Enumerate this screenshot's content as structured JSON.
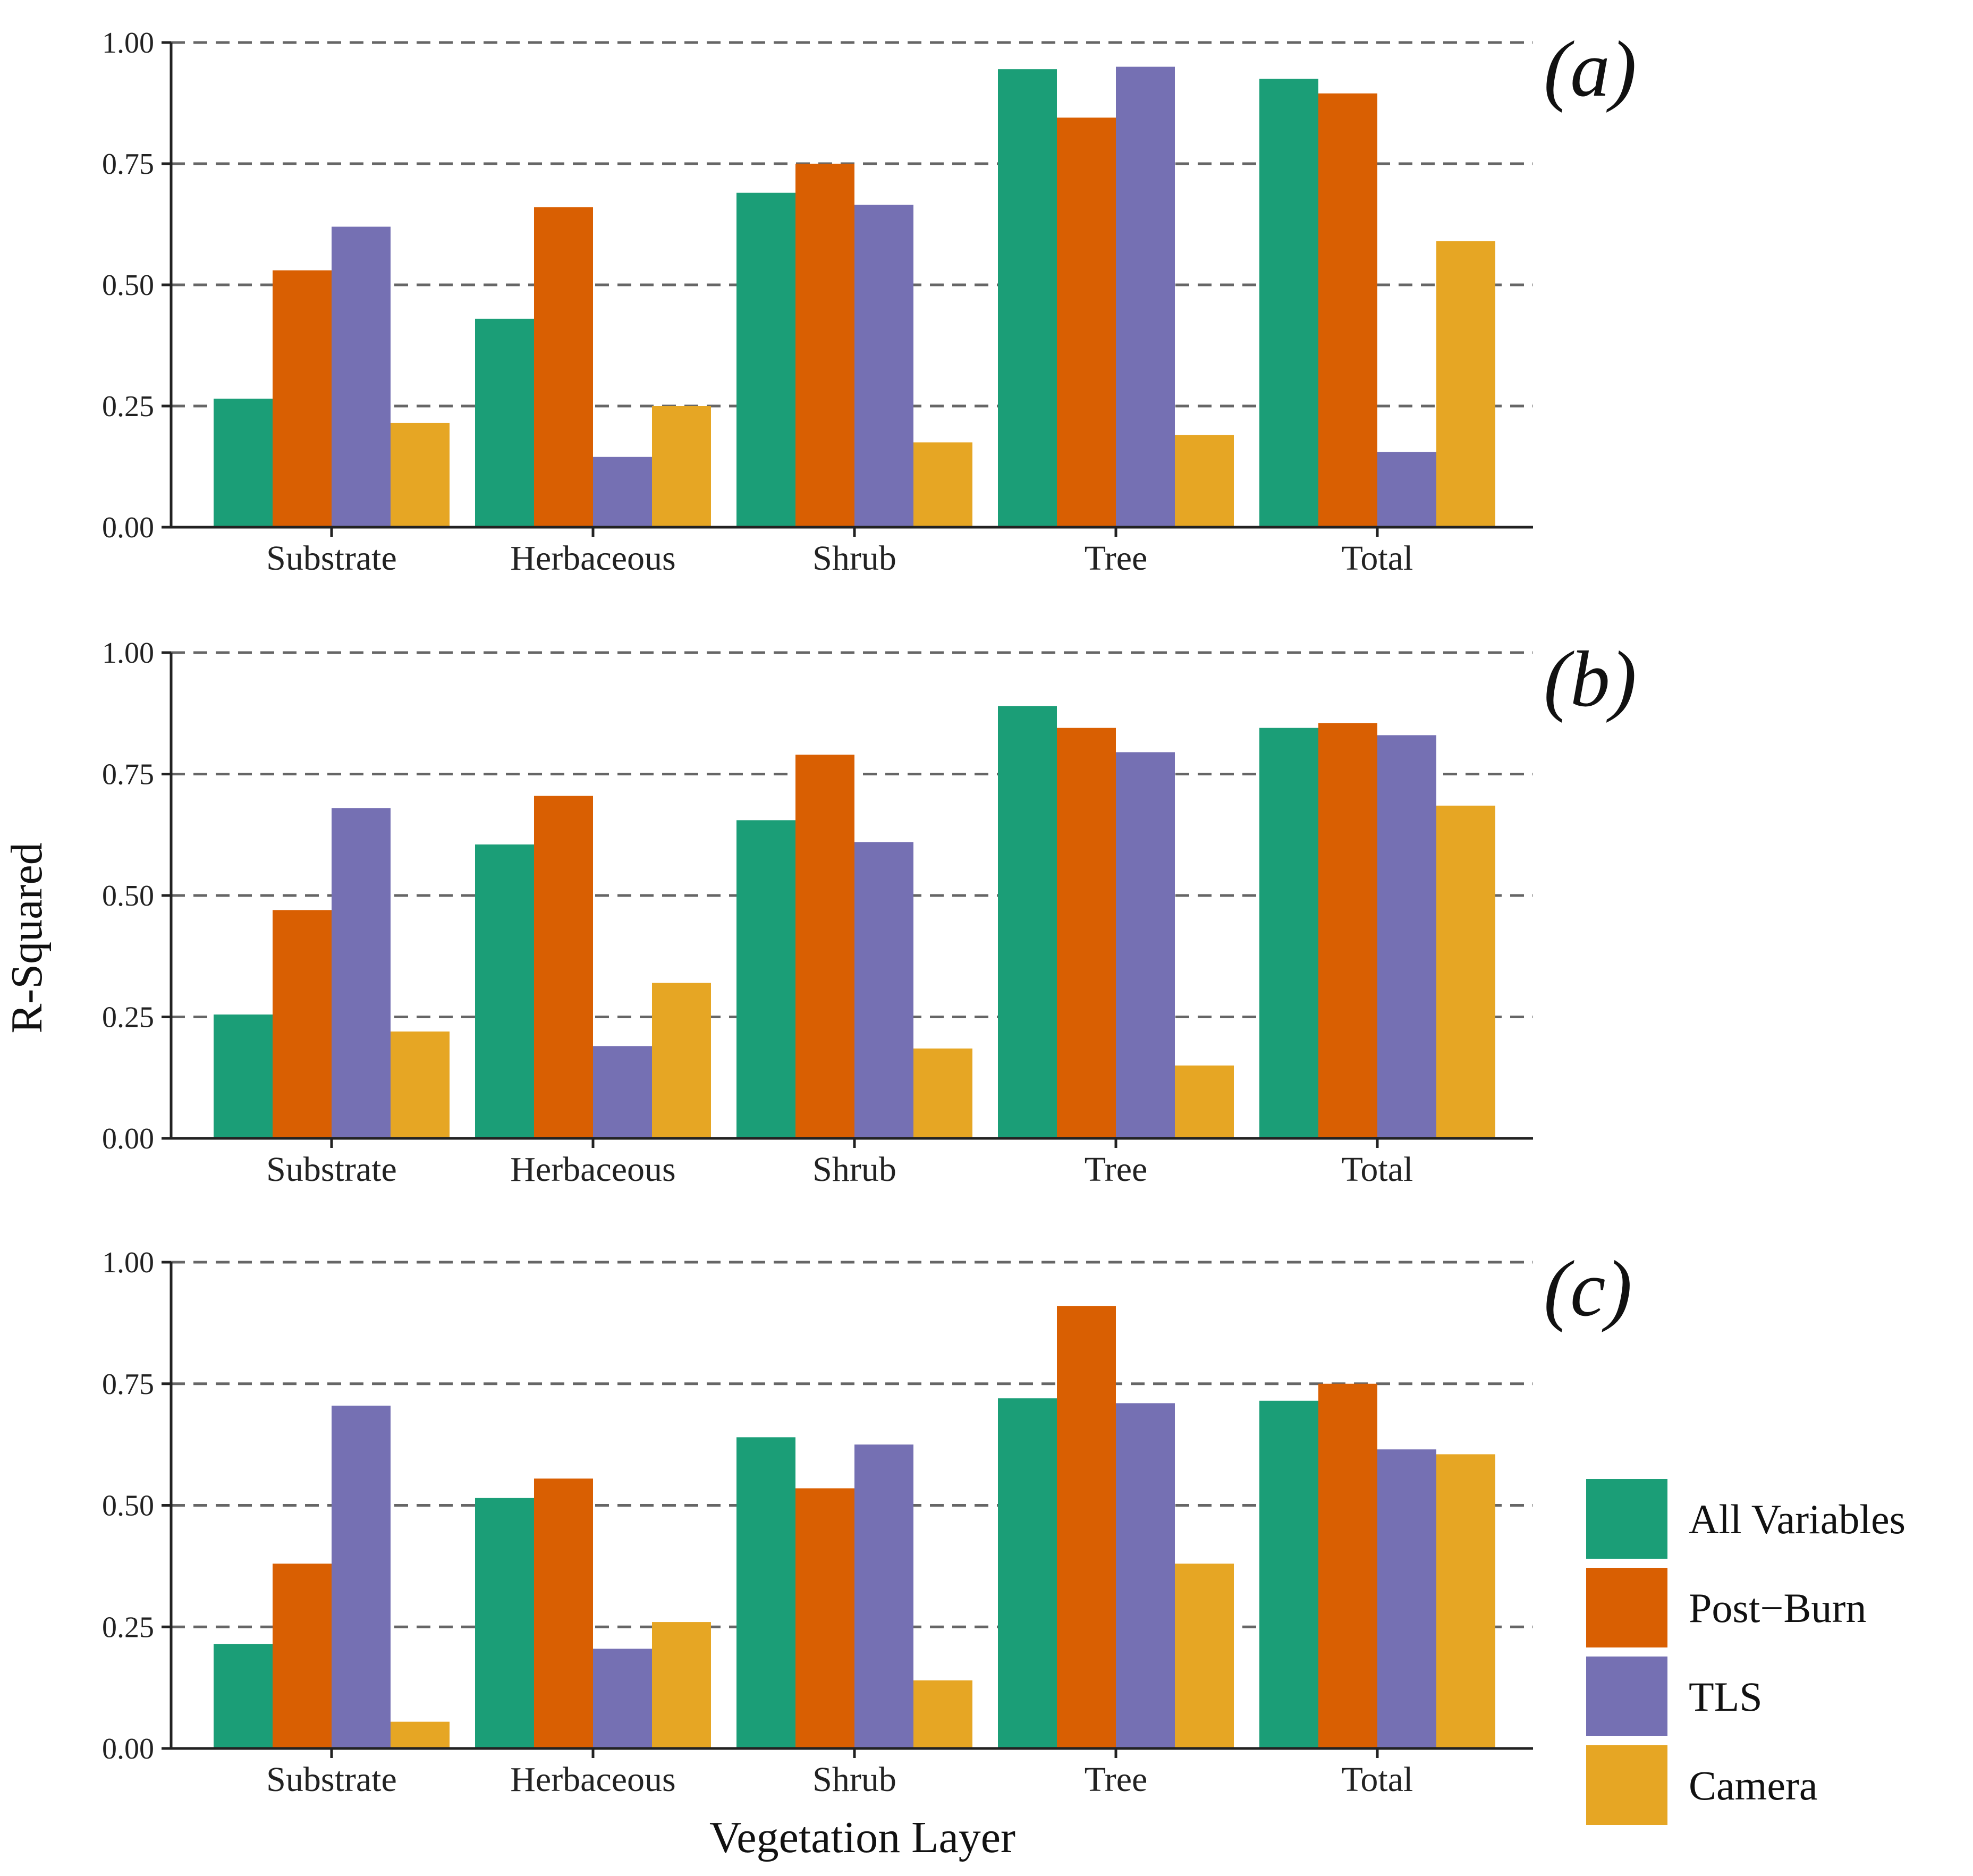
{
  "chart_data": {
    "type": "bar",
    "ylabel": "R-Squared",
    "xlabel": "Vegetation Layer",
    "ylim": [
      0,
      1
    ],
    "yticks": [
      "0.00",
      "0.25",
      "0.50",
      "0.75",
      "1.00"
    ],
    "categories": [
      "Substrate",
      "Herbaceous",
      "Shrub",
      "Tree",
      "Total"
    ],
    "series_names": [
      "All Variables",
      "Post−Burn",
      "TLS",
      "Camera"
    ],
    "colors": [
      "#1b9e77",
      "#d95f02",
      "#7570b3",
      "#e6a624"
    ],
    "grid": "horizontal dashed",
    "legend_position": "right-bottom",
    "panels": [
      {
        "label": "(a)",
        "series": [
          {
            "name": "All Variables",
            "values": [
              0.265,
              0.43,
              0.69,
              0.945,
              0.925
            ]
          },
          {
            "name": "Post−Burn",
            "values": [
              0.53,
              0.66,
              0.75,
              0.845,
              0.895
            ]
          },
          {
            "name": "TLS",
            "values": [
              0.62,
              0.145,
              0.665,
              0.95,
              0.155
            ]
          },
          {
            "name": "Camera",
            "values": [
              0.215,
              0.25,
              0.175,
              0.19,
              0.59
            ]
          }
        ]
      },
      {
        "label": "(b)",
        "series": [
          {
            "name": "All Variables",
            "values": [
              0.255,
              0.605,
              0.655,
              0.89,
              0.845
            ]
          },
          {
            "name": "Post−Burn",
            "values": [
              0.47,
              0.705,
              0.79,
              0.845,
              0.855
            ]
          },
          {
            "name": "TLS",
            "values": [
              0.68,
              0.19,
              0.61,
              0.795,
              0.83
            ]
          },
          {
            "name": "Camera",
            "values": [
              0.22,
              0.32,
              0.185,
              0.15,
              0.685
            ]
          }
        ]
      },
      {
        "label": "(c)",
        "series": [
          {
            "name": "All Variables",
            "values": [
              0.215,
              0.515,
              0.64,
              0.72,
              0.715
            ]
          },
          {
            "name": "Post−Burn",
            "values": [
              0.38,
              0.555,
              0.535,
              0.91,
              0.75
            ]
          },
          {
            "name": "TLS",
            "values": [
              0.705,
              0.205,
              0.625,
              0.71,
              0.615
            ]
          },
          {
            "name": "Camera",
            "values": [
              0.055,
              0.26,
              0.14,
              0.38,
              0.605
            ]
          }
        ]
      }
    ]
  }
}
